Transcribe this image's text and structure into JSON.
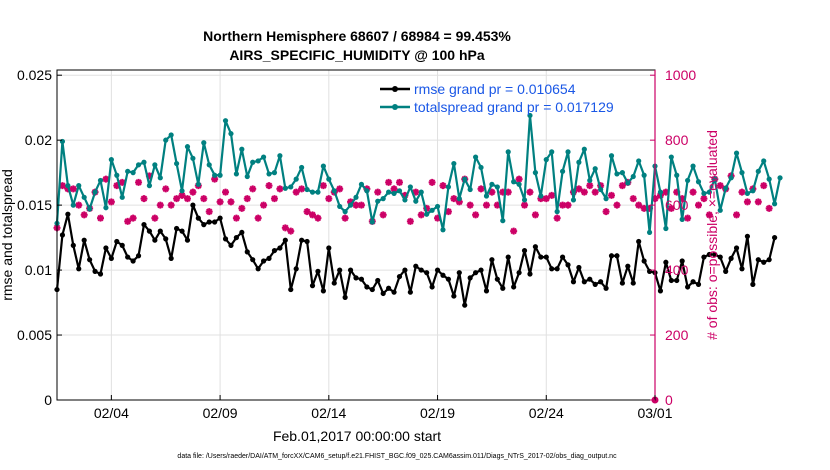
{
  "chart_data": {
    "type": "line",
    "title": "Northern Hemisphere 68607 / 68984 = 99.453%",
    "subtitle": "AIRS_SPECIFIC_HUMIDITY @ 100 hPa",
    "xlabel": "Feb.01,2017 00:00:00 start",
    "ylabel_left": "rmse and totalspread",
    "ylabel_right": "# of obs: o=possible; ×=evaluated",
    "footnote": "data file: /Users/raeder/DAI/ATM_forcXX/CAM6_setup/f.e21.FHIST_BGC.f09_025.CAM6assim.011/Diags_NTrS_2017-02/obs_diag_output.nc",
    "x_range_days": [
      0.5,
      28.0
    ],
    "ylim_left": [
      0,
      0.0254
    ],
    "yticks_left": [
      "0",
      "0.005",
      "0.01",
      "0.015",
      "0.02",
      "0.025"
    ],
    "yticks_left_values": [
      0,
      0.005,
      0.01,
      0.015,
      0.02,
      0.025
    ],
    "ylim_right": [
      0,
      1016
    ],
    "yticks_right": [
      "0",
      "200",
      "400",
      "600",
      "800",
      "1000"
    ],
    "yticks_right_values": [
      0,
      200,
      400,
      600,
      800,
      1000
    ],
    "xticks": [
      "02/04",
      "02/09",
      "02/14",
      "02/19",
      "02/24",
      "03/01"
    ],
    "xticks_days": [
      3,
      8,
      13,
      18,
      23,
      28
    ],
    "colors": {
      "rmse": "#000000",
      "spread": "#008080",
      "obs": "#cc0066",
      "grid": "#e0e0e0",
      "legend_text": "#1a57e6"
    },
    "series": [
      {
        "name": "rmse grand pr = 0.010654",
        "color": "#000000",
        "x_start": 0.5,
        "x_step": 0.25,
        "values": [
          0.0085,
          0.0127,
          0.0143,
          0.0119,
          0.0101,
          0.0123,
          0.0108,
          0.0099,
          0.0097,
          0.0117,
          0.0109,
          0.0122,
          0.0119,
          0.011,
          0.0107,
          0.0111,
          0.0135,
          0.013,
          0.0123,
          0.013,
          0.0124,
          0.0109,
          0.0132,
          0.013,
          0.0123,
          0.015,
          0.014,
          0.0135,
          0.0137,
          0.0137,
          0.014,
          0.0124,
          0.0119,
          0.0125,
          0.0129,
          0.0114,
          0.0108,
          0.0101,
          0.0107,
          0.0109,
          0.0115,
          0.0117,
          0.0123,
          0.0085,
          0.0101,
          0.0123,
          0.0122,
          0.0088,
          0.0099,
          0.0084,
          0.0117,
          0.009,
          0.01,
          0.0079,
          0.01,
          0.0094,
          0.0093,
          0.0087,
          0.0085,
          0.0092,
          0.0082,
          0.0086,
          0.0083,
          0.0095,
          0.01,
          0.0083,
          0.0103,
          0.01,
          0.0098,
          0.0087,
          0.01,
          0.0096,
          0.0093,
          0.008,
          0.0098,
          0.0073,
          0.0094,
          0.0098,
          0.01,
          0.0084,
          0.0108,
          0.0093,
          0.0086,
          0.011,
          0.0087,
          0.0098,
          0.0115,
          0.0097,
          0.0118,
          0.011,
          0.011,
          0.0101,
          0.0101,
          0.011,
          0.0104,
          0.0091,
          0.0102,
          0.0091,
          0.0093,
          0.0089,
          0.0091,
          0.0086,
          0.0111,
          0.0111,
          0.009,
          0.0103,
          0.009,
          0.0122,
          0.0107,
          0.0099,
          0.0098,
          0.0084,
          0.0106,
          0.0092,
          0.0092,
          0.0107,
          0.0087,
          0.0091,
          0.0089,
          0.011,
          0.0112,
          0.0112,
          0.011,
          0.0099,
          0.0109,
          0.0117,
          0.0101,
          0.0126,
          0.0089,
          0.0108,
          0.0106,
          0.0108,
          0.0125
        ]
      },
      {
        "name": "totalspread grand pr = 0.017129",
        "color": "#008080",
        "x_start": 0.5,
        "x_step": 0.25,
        "values": [
          0.0136,
          0.0199,
          0.0165,
          0.015,
          0.0165,
          0.0156,
          0.0147,
          0.016,
          0.0169,
          0.0148,
          0.0185,
          0.0173,
          0.0156,
          0.0176,
          0.0175,
          0.0181,
          0.0183,
          0.0165,
          0.0181,
          0.0171,
          0.02,
          0.0204,
          0.0182,
          0.0161,
          0.0195,
          0.0186,
          0.0166,
          0.0198,
          0.0181,
          0.0173,
          0.0173,
          0.0215,
          0.0205,
          0.0174,
          0.0193,
          0.0172,
          0.0183,
          0.0184,
          0.0187,
          0.0174,
          0.0175,
          0.0188,
          0.0163,
          0.0164,
          0.017,
          0.0179,
          0.0162,
          0.016,
          0.016,
          0.018,
          0.017,
          0.0161,
          0.0149,
          0.0145,
          0.015,
          0.0156,
          0.0166,
          0.0161,
          0.0137,
          0.0153,
          0.0155,
          0.016,
          0.0159,
          0.0161,
          0.0154,
          0.0164,
          0.0153,
          0.016,
          0.0143,
          0.0146,
          0.0149,
          0.0131,
          0.0164,
          0.0182,
          0.0155,
          0.017,
          0.0162,
          0.0187,
          0.0179,
          0.0157,
          0.0166,
          0.0164,
          0.0138,
          0.0191,
          0.0168,
          0.0166,
          0.0154,
          0.0219,
          0.0175,
          0.0157,
          0.0185,
          0.0191,
          0.0145,
          0.0176,
          0.0191,
          0.0154,
          0.0183,
          0.0193,
          0.0169,
          0.0178,
          0.0162,
          0.0155,
          0.0188,
          0.0174,
          0.0175,
          0.0167,
          0.0172,
          0.0184,
          0.0173,
          0.0129,
          0.018,
          0.016,
          0.0132,
          0.0187,
          0.0173,
          0.0139,
          0.0169,
          0.018,
          0.0168,
          0.0159,
          0.016,
          0.017,
          0.0146,
          0.0163,
          0.0171,
          0.019,
          0.0175,
          0.0159,
          0.0161,
          0.0176,
          0.0184,
          0.017,
          0.0151,
          0.0171
        ]
      },
      {
        "name": "# of obs evaluated",
        "color": "#cc0066",
        "x_start": 0.5,
        "x_step": 0.25,
        "values": [
          530,
          660,
          650,
          650,
          600,
          570,
          590,
          640,
          560,
          680,
          610,
          660,
          670,
          550,
          560,
          670,
          620,
          690,
          560,
          600,
          650,
          600,
          620,
          630,
          620,
          640,
          660,
          620,
          580,
          680,
          610,
          640,
          610,
          560,
          590,
          620,
          650,
          560,
          600,
          660,
          620,
          650,
          530,
          520,
          640,
          650,
          580,
          570,
          560,
          660,
          620,
          640,
          650,
          560,
          610,
          600,
          600,
          650,
          550,
          640,
          570,
          670,
          650,
          670,
          630,
          550,
          640,
          570,
          590,
          670,
          560,
          660,
          580,
          620,
          610,
          680,
          600,
          570,
          650,
          600,
          640,
          600,
          640,
          640,
          520,
          680,
          600,
          640,
          570,
          620,
          620,
          630,
          560,
          600,
          600,
          640,
          650,
          640,
          660,
          640,
          660,
          580,
          630,
          600,
          660,
          670,
          620,
          600,
          590,
          590,
          620,
          630,
          640,
          590,
          640,
          620,
          560,
          640,
          600,
          620,
          570,
          680,
          660,
          650,
          690,
          570,
          640,
          610,
          650,
          610,
          660,
          590
        ]
      }
    ]
  },
  "legend": [
    {
      "label": "rmse grand pr = 0.010654"
    },
    {
      "label": "totalspread grand pr = 0.017129"
    }
  ]
}
